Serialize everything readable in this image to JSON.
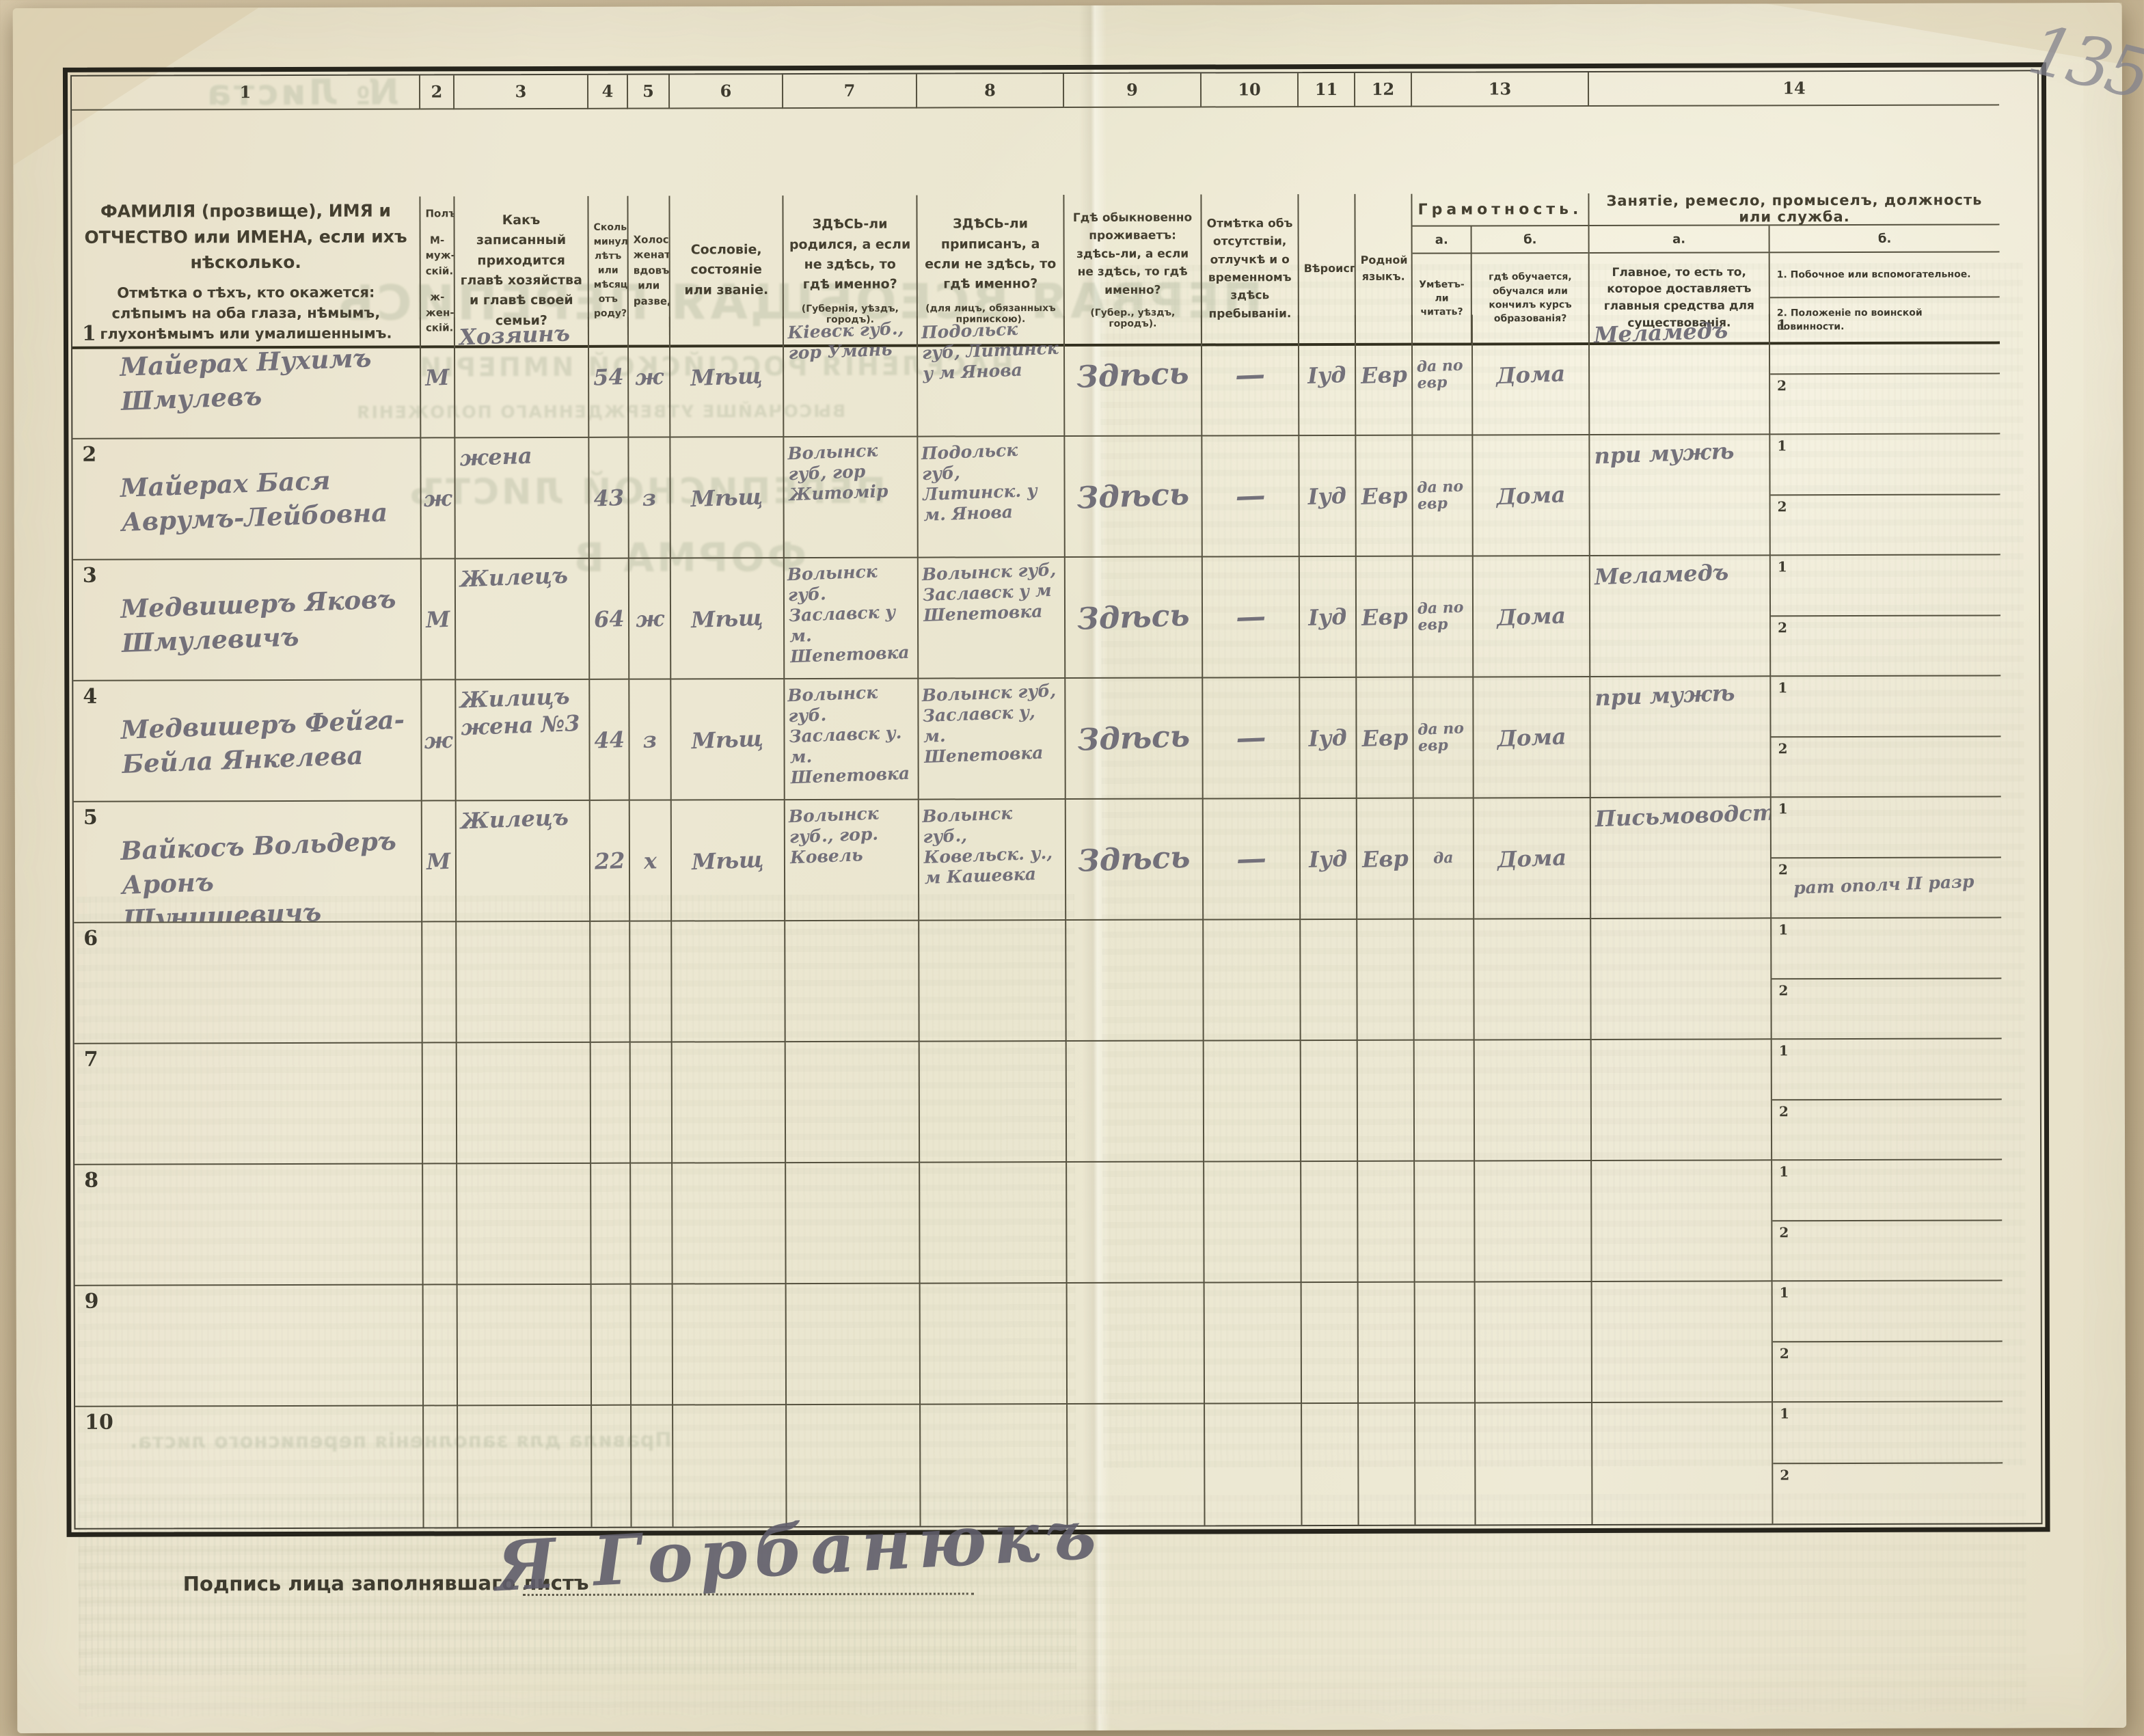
{
  "document": {
    "pencil_page_number": "135",
    "signature_label": "Подпись лица заполнявшаго листъ",
    "signature_value": "Я Горбанюкъ",
    "bleedthrough": {
      "sheet_no": "№ Листа",
      "title_main": "ПЕРВАЯ ВСЕОБЩАЯ ПЕРЕПИСЬ",
      "title_sub": "НАСЕЛЕНІЯ РОССІЙСКОЙ ИМПЕРІИ",
      "title_law": "ВЫСОЧАЙШЕ УТВЕРЖДЕННАГО ПОЛОЖЕНІЯ",
      "title_list": "ПЕРЕПИСНОЙ ЛИСТЪ",
      "title_form": "ФОРМА В",
      "rules": "Правила для заполненія переписного листа."
    }
  },
  "table": {
    "column_numbers": [
      "1",
      "2",
      "3",
      "4",
      "5",
      "6",
      "7",
      "8",
      "9",
      "10",
      "11",
      "12",
      "13",
      "14"
    ],
    "sub_row_markers": [
      "1",
      "2"
    ],
    "headers": {
      "c1_line1": "ФАМИЛІЯ (прозвище), ИМЯ и ОТЧЕСТВО или ИМЕНА, если ихъ нѣсколько.",
      "c1_line2": "Отмѣтка о тѣхъ, кто окажется: слѣпымъ на оба глаза, нѣмымъ, глухонѣмымъ или умалишеннымъ.",
      "c2_line1": "Полъ.",
      "c2_line2": "М-муж-скій.",
      "c2_line3": "ж-жен-скій.",
      "c3": "Какъ записанный приходится главѣ хозяйства и главѣ своей семьи?",
      "c4": "Сколько минуло лѣтъ или мѣсяцевъ отъ роду?",
      "c5": "Холостъ, женатъ, вдовъ или разведенъ.",
      "c6": "Сословіе, состояніе или званіе.",
      "c7_main": "ЗДѢСЬ-ли родился, а если не здѣсь, то гдѣ именно?",
      "c7_note": "(Губернія, уѣздъ, городъ).",
      "c8_main": "ЗДѢСЬ-ли приписанъ, а если не здѣсь, то гдѣ именно?",
      "c8_note": "(для лицъ, обязанныхъ припискою).",
      "c9_main": "Гдѣ обыкновенно проживаетъ: здѣсь-ли, а если не здѣсь, то гдѣ именно?",
      "c9_note": "(Губер., уѣздъ, городъ).",
      "c10": "Отмѣтка объ отсутствіи, отлучкѣ и о временномъ здѣсь пребываніи.",
      "c11": "Вѣроисповѣданіе.",
      "c12": "Родной языкъ.",
      "c13_title": "Грамотность.",
      "c13a_label": "а.",
      "c13b_label": "б.",
      "c13a_text": "Умѣетъ-ли читать?",
      "c13b_text": "гдѣ обучается, обучался или кончилъ курсъ образованія?",
      "c14_title": "Занятіе, ремесло, промыселъ, должность или служба.",
      "c14a_label": "а.",
      "c14b_label": "б.",
      "c14a_text": "Главное, то есть то, которое доставляетъ главныя средства для существованія.",
      "c14b_item1": "1. Побочное или вспомогательное.",
      "c14b_item2": "2. Положеніе по воинской повинности."
    },
    "rows": [
      {
        "num": "1",
        "name": "Майерах Нухимъ Шмулевъ",
        "sex": "М",
        "relation": "Хозяинъ",
        "age": "54",
        "marital": "ж",
        "estate": "Мѣщ",
        "born": "Кіевск губ., гор Умань",
        "registered": "Подольск губ, Литинск у м Янова",
        "residence": "Здѣсь",
        "absence": "—",
        "religion": "Іуд",
        "language": "Евр",
        "reads": "да по евр",
        "education": "Дома",
        "occupation_main": "Меламедъ",
        "occupation_side": ""
      },
      {
        "num": "2",
        "name": "Майерах Бася Аврумъ-Лейбовна",
        "sex": "ж",
        "relation": "жена",
        "age": "43",
        "marital": "з",
        "estate": "Мѣщ",
        "born": "Волынск губ, гор Житомір",
        "registered": "Подольск губ, Литинск. у м. Янова",
        "residence": "Здѣсь",
        "absence": "—",
        "religion": "Іуд",
        "language": "Евр",
        "reads": "да по евр",
        "education": "Дома",
        "occupation_main": "при мужѣ",
        "occupation_side": ""
      },
      {
        "num": "3",
        "name": "Медвишеръ Яковъ Шмулевичъ",
        "sex": "М",
        "relation": "Жилецъ",
        "age": "64",
        "marital": "ж",
        "estate": "Мѣщ",
        "born": "Волынск губ. Заславск у м. Шепетовка",
        "registered": "Волынск губ, Заславск у м Шепетовка",
        "residence": "Здѣсь",
        "absence": "—",
        "religion": "Іуд",
        "language": "Евр",
        "reads": "да по евр",
        "education": "Дома",
        "occupation_main": "Меламедъ",
        "occupation_side": ""
      },
      {
        "num": "4",
        "name": "Медвишеръ Фейга-Бейла Янкелева",
        "sex": "ж",
        "relation": "Жилицъ жена №3",
        "age": "44",
        "marital": "з",
        "estate": "Мѣщ",
        "born": "Волынск губ. Заславск у. м. Шепетовка",
        "registered": "Волынск губ, Заславск у, м. Шепетовка",
        "residence": "Здѣсь",
        "absence": "—",
        "religion": "Іуд",
        "language": "Евр",
        "reads": "да по евр",
        "education": "Дома",
        "occupation_main": "при мужѣ",
        "occupation_side": ""
      },
      {
        "num": "5",
        "name": "Вайкосъ Вольдеръ Аронъ Шунишевичъ",
        "sex": "М",
        "relation": "Жилецъ",
        "age": "22",
        "marital": "х",
        "estate": "Мѣщ",
        "born": "Волынск губ., гор. Ковель",
        "registered": "Волынск губ., Ковельск. у., м Кашевка",
        "residence": "Здѣсь",
        "absence": "—",
        "religion": "Іуд",
        "language": "Евр",
        "reads": "да",
        "education": "Дома",
        "occupation_main": "Письмоводствомъ",
        "occupation_side": "рат ополч II разр"
      },
      {
        "num": "6",
        "name": "",
        "sex": "",
        "relation": "",
        "age": "",
        "marital": "",
        "estate": "",
        "born": "",
        "registered": "",
        "residence": "",
        "absence": "",
        "religion": "",
        "language": "",
        "reads": "",
        "education": "",
        "occupation_main": "",
        "occupation_side": ""
      },
      {
        "num": "7",
        "name": "",
        "sex": "",
        "relation": "",
        "age": "",
        "marital": "",
        "estate": "",
        "born": "",
        "registered": "",
        "residence": "",
        "absence": "",
        "religion": "",
        "language": "",
        "reads": "",
        "education": "",
        "occupation_main": "",
        "occupation_side": ""
      },
      {
        "num": "8",
        "name": "",
        "sex": "",
        "relation": "",
        "age": "",
        "marital": "",
        "estate": "",
        "born": "",
        "registered": "",
        "residence": "",
        "absence": "",
        "religion": "",
        "language": "",
        "reads": "",
        "education": "",
        "occupation_main": "",
        "occupation_side": ""
      },
      {
        "num": "9",
        "name": "",
        "sex": "",
        "relation": "",
        "age": "",
        "marital": "",
        "estate": "",
        "born": "",
        "registered": "",
        "residence": "",
        "absence": "",
        "religion": "",
        "language": "",
        "reads": "",
        "education": "",
        "occupation_main": "",
        "occupation_side": ""
      },
      {
        "num": "10",
        "name": "",
        "sex": "",
        "relation": "",
        "age": "",
        "marital": "",
        "estate": "",
        "born": "",
        "registered": "",
        "residence": "",
        "absence": "",
        "religion": "",
        "language": "",
        "reads": "",
        "education": "",
        "occupation_main": "",
        "occupation_side": ""
      }
    ]
  }
}
